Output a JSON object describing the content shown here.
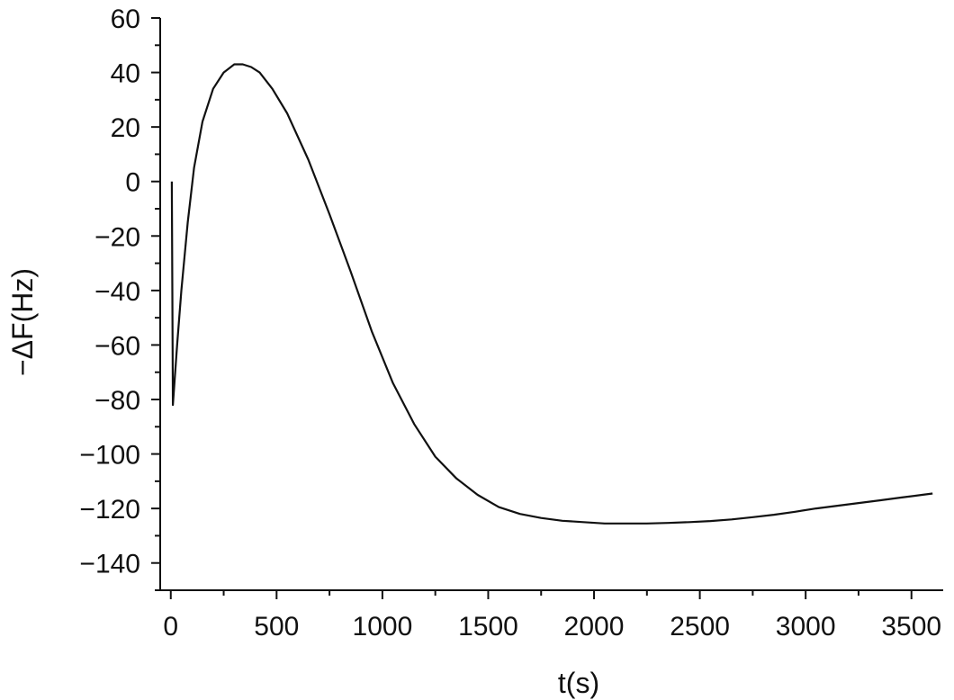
{
  "chart_data": {
    "type": "line",
    "title": "",
    "xlabel": "t(s)",
    "ylabel": "−ΔF(Hz)",
    "xlim": [
      -50,
      3650
    ],
    "ylim": [
      -150,
      60
    ],
    "xticks": [
      0,
      500,
      1000,
      1500,
      2000,
      2500,
      3000,
      3500
    ],
    "xtick_labels": [
      "0",
      "500",
      "1000",
      "1500",
      "2000",
      "2500",
      "3000",
      "3500"
    ],
    "yticks": [
      60,
      40,
      20,
      0,
      -20,
      -40,
      -60,
      -80,
      -100,
      -120,
      -140
    ],
    "ytick_labels": [
      "60",
      "40",
      "20",
      "0",
      "−20",
      "−40",
      "−60",
      "−80",
      "−100",
      "−120",
      "−140"
    ],
    "grid": false,
    "series": [
      {
        "x": [
          5,
          10,
          30,
          50,
          80,
          110,
          150,
          200,
          250,
          300,
          340,
          380,
          420,
          480,
          550,
          650,
          750,
          850,
          950,
          1050,
          1150,
          1250,
          1350,
          1450,
          1550,
          1650,
          1750,
          1850,
          1950,
          2050,
          2150,
          2250,
          2350,
          2450,
          2550,
          2650,
          2750,
          2850,
          2950,
          3050,
          3150,
          3250,
          3350,
          3450,
          3550,
          3600
        ],
        "y": [
          0,
          -82,
          -60,
          -40,
          -15,
          5,
          22,
          34,
          40,
          43,
          43,
          42,
          40,
          34,
          25,
          8,
          -12,
          -33,
          -55,
          -74,
          -89,
          -101,
          -109,
          -115,
          -119.5,
          -122,
          -123.5,
          -124.5,
          -125,
          -125.5,
          -125.5,
          -125.5,
          -125.3,
          -125,
          -124.6,
          -124,
          -123.2,
          -122.3,
          -121.2,
          -120,
          -119,
          -118,
          -117,
          -116,
          -115,
          -114.5
        ]
      }
    ]
  }
}
